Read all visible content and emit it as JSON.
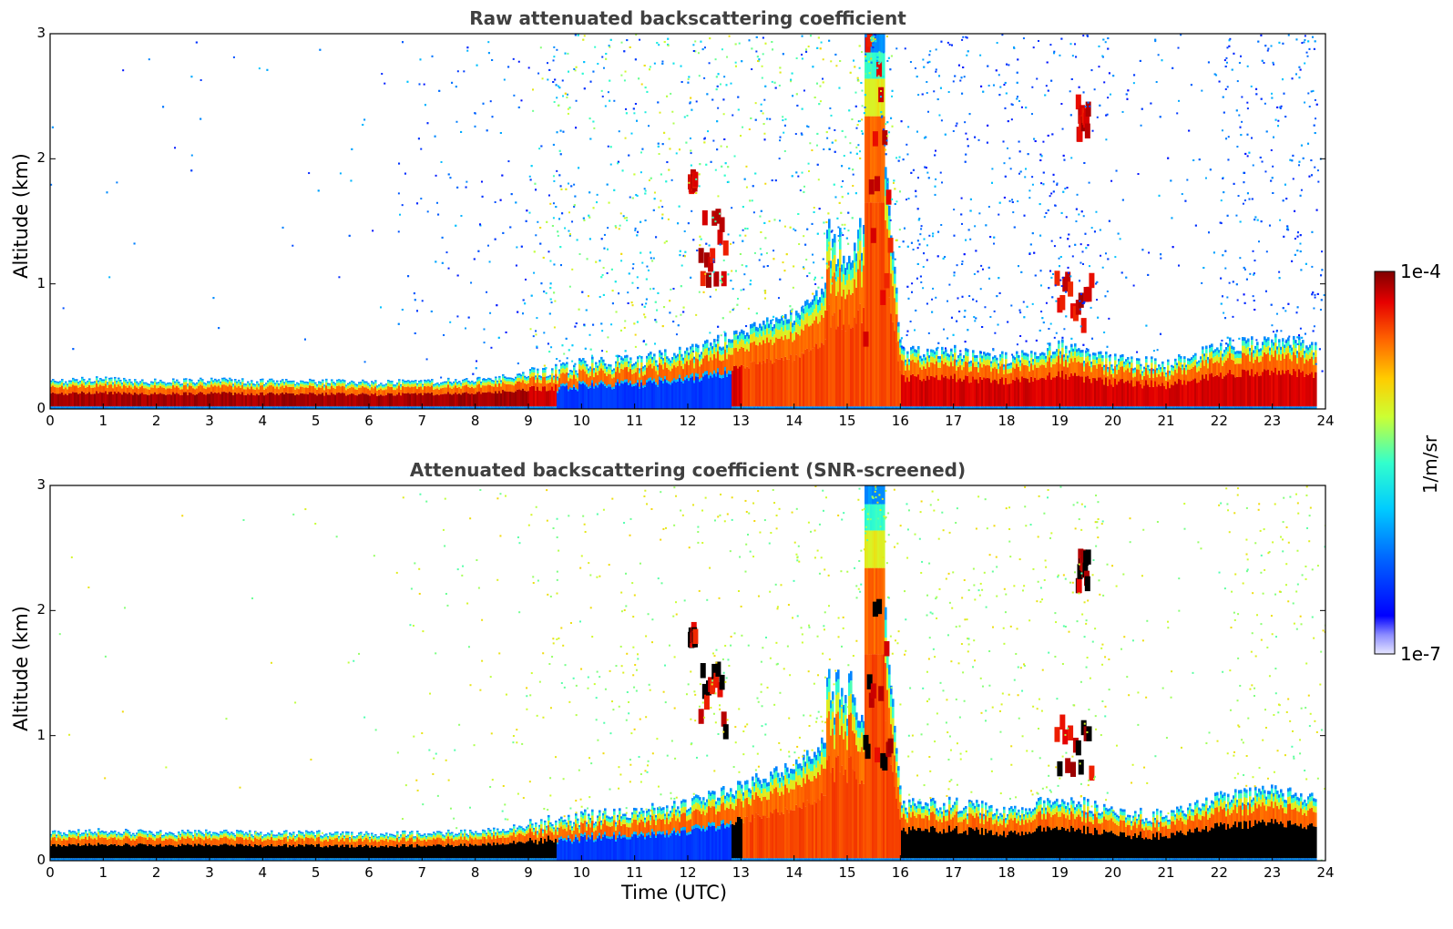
{
  "chart_data": [
    {
      "type": "heatmap",
      "title": "Raw attenuated backscattering coefficient",
      "xlabel": "",
      "ylabel": "Altitude (km)",
      "xlim": [
        0,
        24
      ],
      "ylim": [
        0,
        3
      ],
      "x_ticks": [
        0,
        1,
        2,
        3,
        4,
        5,
        6,
        7,
        8,
        9,
        10,
        11,
        12,
        13,
        14,
        15,
        16,
        17,
        18,
        19,
        20,
        21,
        22,
        23,
        24
      ],
      "y_ticks": [
        0,
        1,
        2,
        3
      ],
      "boundary_layer_top_km": [
        [
          0,
          0.22
        ],
        [
          1,
          0.24
        ],
        [
          2,
          0.22
        ],
        [
          3,
          0.23
        ],
        [
          4,
          0.22
        ],
        [
          5,
          0.22
        ],
        [
          6,
          0.21
        ],
        [
          7,
          0.22
        ],
        [
          8,
          0.23
        ],
        [
          9,
          0.28
        ],
        [
          10,
          0.35
        ],
        [
          11,
          0.38
        ],
        [
          12,
          0.45
        ],
        [
          13,
          0.6
        ],
        [
          14,
          0.75
        ],
        [
          15,
          1.1
        ],
        [
          15.5,
          3.0
        ],
        [
          16,
          0.45
        ],
        [
          17,
          0.45
        ],
        [
          18,
          0.4
        ],
        [
          19,
          0.5
        ],
        [
          20,
          0.38
        ],
        [
          21,
          0.35
        ],
        [
          22,
          0.5
        ],
        [
          23,
          0.55
        ],
        [
          23.8,
          0.5
        ]
      ],
      "cloud_layers": [
        {
          "x": [
            12.2,
            12.7
          ],
          "y": [
            0.95,
            1.5
          ]
        },
        {
          "x": [
            12.0,
            12.1
          ],
          "y": [
            1.7,
            1.8
          ]
        },
        {
          "x": [
            18.9,
            19.6
          ],
          "y": [
            0.6,
            1.05
          ]
        },
        {
          "x": [
            19.3,
            19.5
          ],
          "y": [
            2.1,
            2.4
          ]
        },
        {
          "x": [
            15.3,
            15.8
          ],
          "y": [
            0.4,
            3.0
          ]
        }
      ]
    },
    {
      "type": "heatmap",
      "title": "Attenuated backscattering coefficient (SNR-screened)",
      "xlabel": "Time (UTC)",
      "ylabel": "Altitude (km)",
      "xlim": [
        0,
        24
      ],
      "ylim": [
        0,
        3
      ],
      "x_ticks": [
        0,
        1,
        2,
        3,
        4,
        5,
        6,
        7,
        8,
        9,
        10,
        11,
        12,
        13,
        14,
        15,
        16,
        17,
        18,
        19,
        20,
        21,
        22,
        23,
        24
      ],
      "y_ticks": [
        0,
        1,
        2,
        3
      ]
    }
  ],
  "colorbar": {
    "label": "1/m/sr",
    "max_label": "1e-4",
    "min_label": "1e-7",
    "scale": "log",
    "range": [
      1e-07,
      0.0001
    ],
    "colormap": "jet"
  },
  "titles": {
    "top": "Raw attenuated backscattering coefficient",
    "bottom": "Attenuated backscattering coefficient (SNR-screened)"
  },
  "axes": {
    "ylabel": "Altitude (km)",
    "xlabel": "Time (UTC)"
  }
}
